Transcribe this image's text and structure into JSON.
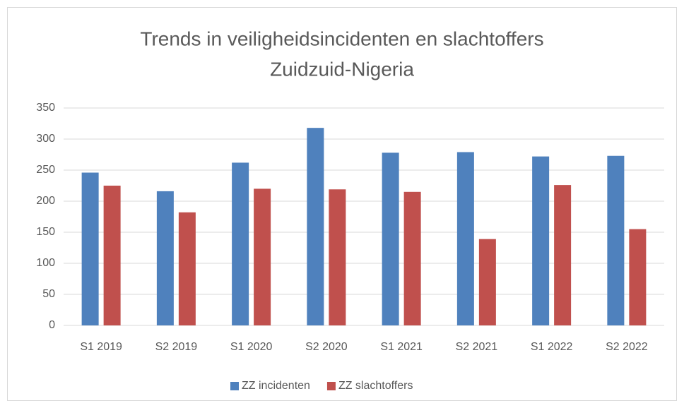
{
  "chart_data": {
    "type": "bar",
    "title": [
      "Trends in veiligheidsincidenten en slachtoffers",
      "Zuidzuid-Nigeria"
    ],
    "categories": [
      "S1 2019",
      "S2 2019",
      "S1 2020",
      "S2 2020",
      "S1 2021",
      "S2 2021",
      "S1 2022",
      "S2 2022"
    ],
    "series": [
      {
        "name": "ZZ incidenten",
        "color": "#4f81bd",
        "values": [
          246,
          216,
          262,
          318,
          278,
          279,
          272,
          273
        ]
      },
      {
        "name": "ZZ slachtoffers",
        "color": "#c0504d",
        "values": [
          225,
          182,
          220,
          219,
          215,
          139,
          226,
          155
        ]
      }
    ],
    "ylim": [
      0,
      350
    ],
    "yticks": [
      0,
      50,
      100,
      150,
      200,
      250,
      300,
      350
    ],
    "grid": true,
    "legend": "bottom"
  }
}
